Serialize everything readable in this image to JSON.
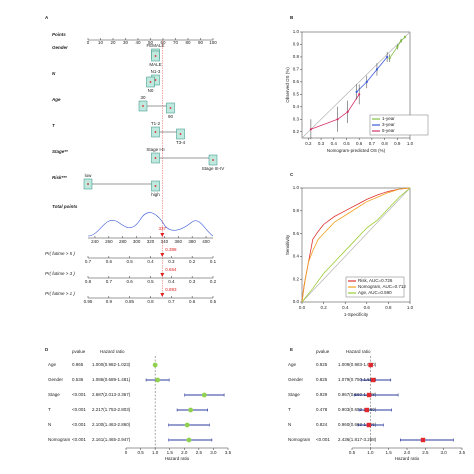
{
  "chart_data": [
    {
      "type": "nomogram",
      "panel": "A",
      "points_label": "Points",
      "points_ticks": [
        0,
        10,
        20,
        30,
        40,
        50,
        60,
        70,
        80,
        90,
        100
      ],
      "variables": [
        {
          "name": "Gender",
          "levels": [
            {
              "label": "FEMALE",
              "points": 54
            },
            {
              "label": "MALE",
              "points": 54
            }
          ]
        },
        {
          "name": "N",
          "levels": [
            {
              "label": "N1-3",
              "points": 54
            },
            {
              "label": "N0",
              "points": 50
            }
          ]
        },
        {
          "name": "Age",
          "levels": [
            {
              "label": "30",
              "points": 44
            },
            {
              "label": "90",
              "points": 66
            }
          ]
        },
        {
          "name": "T",
          "levels": [
            {
              "label": "T1-2",
              "points": 54
            },
            {
              "label": "T3-4",
              "points": 74
            }
          ]
        },
        {
          "name": "Stage**",
          "levels": [
            {
              "label": "Stage I-II",
              "points": 54
            },
            {
              "label": "Stage III-IV",
              "points": 100
            }
          ]
        },
        {
          "name": "Risk***",
          "levels": [
            {
              "label": "low",
              "points": 0
            },
            {
              "label": "high",
              "points": 54
            }
          ]
        }
      ],
      "total_label": "Total points",
      "total_lim": [
        230,
        410
      ],
      "total_ticks": [
        240,
        260,
        280,
        300,
        320,
        340,
        360,
        380,
        400
      ],
      "total_value": 337,
      "survival": [
        {
          "name": "Pr( futime > 5 )",
          "ticks": [
            0.7,
            0.6,
            0.5,
            0.4,
            0.3,
            0.2,
            0.1
          ],
          "value": 0.388
        },
        {
          "name": "Pr( futime > 3 )",
          "ticks": [
            0.8,
            0.7,
            0.6,
            0.5,
            0.4,
            0.3,
            0.2
          ],
          "value": 0.654
        },
        {
          "name": "Pr( futime > 1 )",
          "ticks": [
            0.95,
            0.9,
            0.85,
            0.8,
            0.7,
            0.6,
            0.5
          ],
          "value": 0.893
        }
      ]
    },
    {
      "type": "calibration",
      "panel": "B",
      "xlabel": "Nomogram-predicted OS (%)",
      "ylabel": "Observed OS (%)",
      "xlim": [
        0.15,
        1.0
      ],
      "ylim": [
        0.15,
        1.0
      ],
      "xticks": [
        0.2,
        0.3,
        0.4,
        0.5,
        0.6,
        0.7,
        0.8,
        0.9,
        {
          "value": 1,
          "label": "1.0"
        }
      ],
      "yticks": [
        0.2,
        0.3,
        0.4,
        0.5,
        0.6,
        0.7,
        0.8,
        0.9,
        {
          "value": 1,
          "label": "1.0"
        }
      ],
      "series": [
        {
          "name": "1-year",
          "color": "#7fbf3f",
          "x": [
            0.84,
            0.9,
            0.93,
            0.96
          ],
          "values": [
            0.79,
            0.88,
            0.93,
            0.96
          ],
          "errors": [
            0.03,
            0.02,
            0.015,
            0.01
          ]
        },
        {
          "name": "3-year",
          "color": "#3b5bdb",
          "x": [
            0.58,
            0.66,
            0.74,
            0.82
          ],
          "values": [
            0.52,
            0.6,
            0.7,
            0.8
          ],
          "errors": [
            0.06,
            0.05,
            0.05,
            0.04
          ]
        },
        {
          "name": "5-year",
          "color": "#d6336c",
          "x": [
            0.22,
            0.43,
            0.51,
            0.6
          ],
          "values": [
            0.22,
            0.3,
            0.36,
            0.5
          ],
          "errors": [
            0.08,
            0.1,
            0.09,
            0.08
          ]
        }
      ]
    },
    {
      "type": "roc",
      "panel": "C",
      "xlabel": "1-Specificity",
      "ylabel": "Sensitivity",
      "xlim": [
        0,
        1
      ],
      "ylim": [
        0,
        1
      ],
      "xticks": [
        {
          "value": 0,
          "label": "0.0"
        },
        0.2,
        0.4,
        0.6,
        0.8,
        {
          "value": 1,
          "label": "1.0"
        }
      ],
      "yticks": [
        {
          "value": 0,
          "label": "0.0"
        },
        0.2,
        0.4,
        0.6,
        0.8,
        {
          "value": 1,
          "label": "1.0"
        }
      ],
      "series": [
        {
          "name": "Risk, AUC=0.726",
          "color": "#e03131",
          "x": [
            0,
            0.02,
            0.05,
            0.08,
            0.1,
            0.15,
            0.2,
            0.3,
            0.4,
            0.5,
            0.6,
            0.7,
            0.8,
            0.9,
            1
          ],
          "values": [
            0,
            0.15,
            0.3,
            0.45,
            0.55,
            0.62,
            0.68,
            0.75,
            0.8,
            0.85,
            0.9,
            0.94,
            0.97,
            0.99,
            1
          ]
        },
        {
          "name": "Nomogram, AUC=0.712",
          "color": "#f0a020",
          "x": [
            0,
            0.03,
            0.06,
            0.1,
            0.15,
            0.2,
            0.3,
            0.4,
            0.5,
            0.6,
            0.7,
            0.8,
            0.9,
            1
          ],
          "values": [
            0,
            0.2,
            0.35,
            0.45,
            0.55,
            0.6,
            0.7,
            0.76,
            0.82,
            0.88,
            0.92,
            0.96,
            0.99,
            1
          ]
        },
        {
          "name": "Age, AUC=0.590",
          "color": "#9acd32",
          "x": [
            0,
            0.1,
            0.2,
            0.3,
            0.4,
            0.5,
            0.6,
            0.7,
            0.8,
            0.9,
            1
          ],
          "values": [
            0,
            0.12,
            0.25,
            0.35,
            0.45,
            0.55,
            0.65,
            0.72,
            0.82,
            0.92,
            1
          ]
        }
      ]
    },
    {
      "type": "forest",
      "panel": "D",
      "pvalue_header": "pvalue",
      "hr_header": "Hazard ratio",
      "xlabel": "Hazard ratio",
      "marker": "circle",
      "point_color": "#8fd14f",
      "line_color": "#2b3a9e",
      "xlim": [
        0,
        3.5
      ],
      "xticks": [
        0,
        0.5,
        {
          "value": 1,
          "label": "1.0"
        },
        1.5,
        {
          "value": 2,
          "label": "2.0"
        },
        2.5,
        {
          "value": 3,
          "label": "3.0"
        },
        3.5
      ],
      "rows": [
        {
          "name": "Age",
          "pvalue": "0.965",
          "hr": 1.0,
          "lower": 0.982,
          "upper": 1.023,
          "hr_label": "1.000(0.982-1.023)"
        },
        {
          "name": "Gender",
          "pvalue": "0.536",
          "hr": 1.086,
          "lower": 0.689,
          "upper": 1.481,
          "hr_label": "1.086(0.689-1.481)"
        },
        {
          "name": "Stage",
          "pvalue": "<0.001",
          "hr": 2.687,
          "lower": 2.013,
          "upper": 3.367,
          "hr_label": "2.687(2.013-3.367)"
        },
        {
          "name": "T",
          "pvalue": "<0.001",
          "hr": 2.217,
          "lower": 1.753,
          "upper": 2.803,
          "hr_label": "2.217(1.753-2.803)"
        },
        {
          "name": "N",
          "pvalue": "<0.001",
          "hr": 2.1,
          "lower": 1.463,
          "upper": 2.86,
          "hr_label": "2.100(1.463-2.860)"
        },
        {
          "name": "Nomogram",
          "pvalue": "<0.001",
          "hr": 2.161,
          "lower": 1.465,
          "upper": 2.947,
          "hr_label": "2.161(1.465-2.947)"
        }
      ]
    },
    {
      "type": "forest",
      "panel": "E",
      "pvalue_header": "pvalue",
      "hr_header": "Hazard ratio",
      "xlabel": "Hazard ratio",
      "marker": "square",
      "point_color": "#e0282e",
      "line_color": "#2b3a9e",
      "xlim": [
        0.5,
        3.5
      ],
      "xticks": [
        0.5,
        {
          "value": 1,
          "label": "1.0"
        },
        1.5,
        {
          "value": 2,
          "label": "2.0"
        },
        2.5,
        {
          "value": 3,
          "label": "3.0"
        },
        3.5
      ],
      "rows": [
        {
          "name": "Age",
          "pvalue": "0.925",
          "hr": 1.009,
          "lower": 0.983,
          "upper": 1.03,
          "hr_label": "1.009(0.983-1.030)"
        },
        {
          "name": "Gender",
          "pvalue": "0.825",
          "hr": 1.079,
          "lower": 0.75,
          "upper": 1.557,
          "hr_label": "1.079(0.750-1.557)"
        },
        {
          "name": "Stage",
          "pvalue": "0.929",
          "hr": 0.967,
          "lower": 0.56,
          "upper": 1.758,
          "hr_label": "0.967(0.560-1.758)"
        },
        {
          "name": "T",
          "pvalue": "0.478",
          "hr": 0.903,
          "lower": 0.693,
          "upper": 1.58,
          "hr_label": "0.903(0.693-1.580)"
        },
        {
          "name": "N",
          "pvalue": "0.824",
          "hr": 0.96,
          "lower": 0.663,
          "upper": 1.356,
          "hr_label": "0.960(0.663-1.356)"
        },
        {
          "name": "Nomogram",
          "pvalue": "<0.001",
          "hr": 2.436,
          "lower": 1.817,
          "upper": 3.268,
          "hr_label": "2.436(1.817-3.268)"
        }
      ]
    }
  ]
}
